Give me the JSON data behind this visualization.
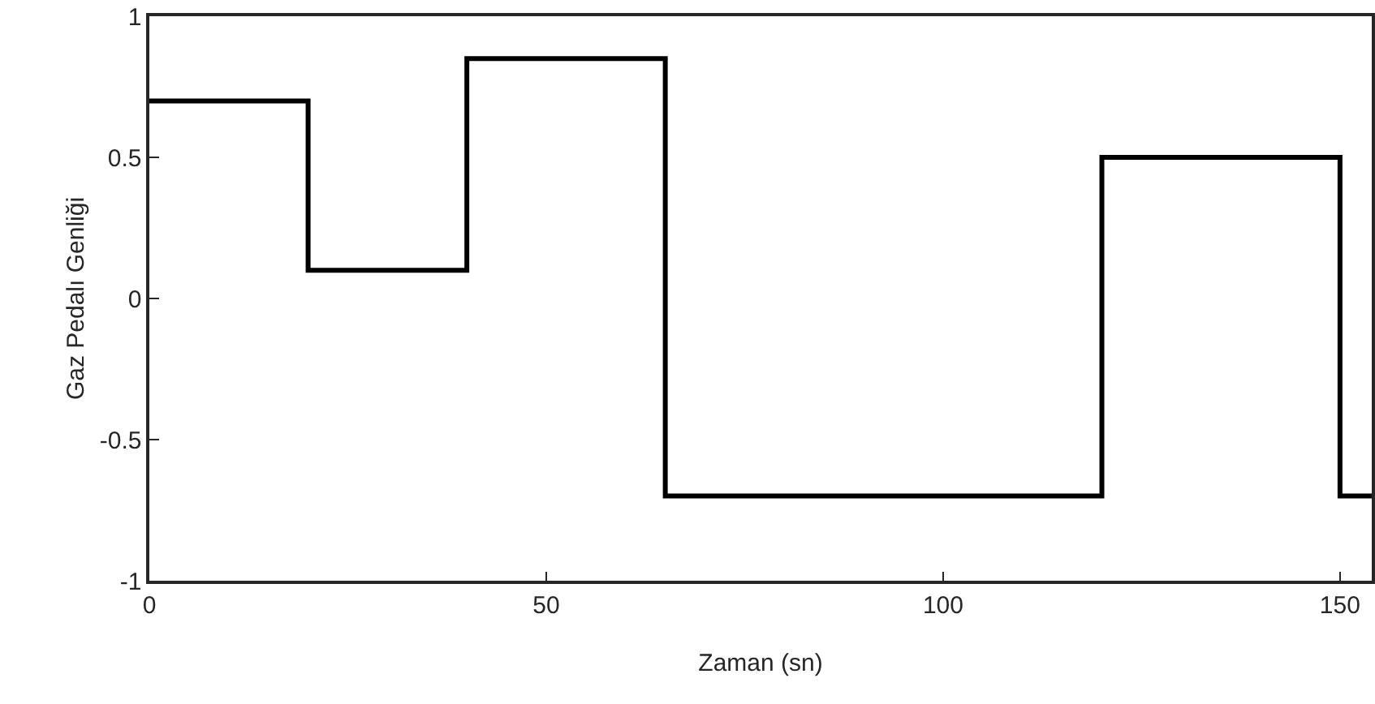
{
  "chart_data": {
    "type": "step",
    "xlabel": "Zaman (sn)",
    "ylabel": "Gaz Pedalı Genliği",
    "x": [
      0,
      20,
      40,
      65,
      120,
      150,
      154
    ],
    "series": [
      {
        "color": "#000000",
        "values": [
          0.7,
          0.1,
          0.85,
          -0.7,
          0.5,
          -0.7,
          -0.7
        ]
      }
    ],
    "xlim": [
      0,
      154
    ],
    "xticks": [
      0,
      50,
      100,
      150
    ],
    "ylim": [
      -1,
      1
    ],
    "yticks": [
      -1,
      -0.5,
      0,
      0.5,
      1
    ],
    "marker": "none",
    "line_style": "solid"
  }
}
